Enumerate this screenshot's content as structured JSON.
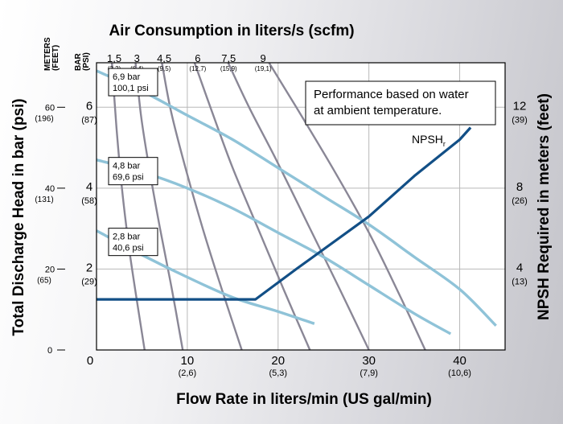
{
  "colors": {
    "grid": "#b8b8b8",
    "air_curve": "#8a8796",
    "pressure_curve": "#8fc3d8",
    "npsh_curve": "#124f86",
    "frame": "#000000",
    "plot_bg": "#ffffff"
  },
  "chart_data": {
    "type": "line",
    "title": "Air Consumption in liters/s (scfm)",
    "xlabel": "Flow Rate in liters/min (US gal/min)",
    "ylabel_left": "Total Discharge Head in bar (psi)",
    "ylabel_right": "NPSH Required in meters (feet)",
    "meters_feet_header": "METERS\n(FEET)",
    "bar_psi_header": "BAR\n(PSI)",
    "note": "Performance based on water at ambient temperature.",
    "npsh_label": "NPSH",
    "npsh_subscript": "r",
    "xlim": [
      0,
      45
    ],
    "ylim": [
      0,
      7.1
    ],
    "grid": true,
    "x_ticks": [
      {
        "x": 0,
        "label": "0",
        "sub": ""
      },
      {
        "x": 10,
        "label": "10",
        "sub": "(2,6)"
      },
      {
        "x": 20,
        "label": "20",
        "sub": "(5,3)"
      },
      {
        "x": 30,
        "label": "30",
        "sub": "(7,9)"
      },
      {
        "x": 40,
        "label": "40",
        "sub": "(10,6)"
      }
    ],
    "y_bar_ticks": [
      {
        "y": 2,
        "label": "2",
        "sub": "(29)"
      },
      {
        "y": 4,
        "label": "4",
        "sub": "(58)"
      },
      {
        "y": 6,
        "label": "6",
        "sub": "(87)"
      }
    ],
    "y_meters_ticks": [
      {
        "y": 0,
        "label": "0",
        "sub": ""
      },
      {
        "y": 2,
        "label": "20",
        "sub": "(65)"
      },
      {
        "y": 4,
        "label": "40",
        "sub": "(131)"
      },
      {
        "y": 6,
        "label": "60",
        "sub": "(196)"
      }
    ],
    "y_npsh_ticks": [
      {
        "y": 2,
        "label": "4",
        "sub": "(13)"
      },
      {
        "y": 4,
        "label": "8",
        "sub": "(26)"
      },
      {
        "y": 6,
        "label": "12",
        "sub": "(39)"
      }
    ],
    "air_labels": [
      {
        "label": "1,5",
        "sub": "(3,2)",
        "x": 0.8
      },
      {
        "label": "3",
        "sub": "(6,4)",
        "x": 3.3
      },
      {
        "label": "4,5",
        "sub": "(9,5)",
        "x": 6.3
      },
      {
        "label": "6",
        "sub": "(12,7)",
        "x": 10.0
      },
      {
        "label": "7,5",
        "sub": "(15,9)",
        "x": 13.4
      },
      {
        "label": "9",
        "sub": "(19,1)",
        "x": 17.2
      }
    ],
    "air_curves": [
      [
        [
          1.7,
          7.1
        ],
        [
          2.2,
          5.5
        ],
        [
          2.8,
          4.0
        ],
        [
          3.6,
          2.5
        ],
        [
          4.6,
          1.0
        ],
        [
          5.3,
          0.0
        ]
      ],
      [
        [
          4.3,
          7.1
        ],
        [
          4.9,
          5.8
        ],
        [
          5.8,
          4.5
        ],
        [
          7.0,
          3.0
        ],
        [
          8.3,
          1.5
        ],
        [
          9.5,
          0.0
        ]
      ],
      [
        [
          7.2,
          7.1
        ],
        [
          8.2,
          5.9
        ],
        [
          9.8,
          4.5
        ],
        [
          11.7,
          3.0
        ],
        [
          13.8,
          1.5
        ],
        [
          16.0,
          0.0
        ]
      ],
      [
        [
          10.8,
          7.1
        ],
        [
          12.7,
          5.9
        ],
        [
          15.0,
          4.5
        ],
        [
          17.8,
          3.0
        ],
        [
          20.6,
          1.5
        ],
        [
          23.5,
          0.0
        ]
      ],
      [
        [
          14.5,
          7.1
        ],
        [
          16.8,
          6.0
        ],
        [
          19.8,
          4.7
        ],
        [
          23.3,
          3.1
        ],
        [
          26.8,
          1.5
        ],
        [
          30.0,
          0.0
        ]
      ],
      [
        [
          19.0,
          7.1
        ],
        [
          22.0,
          6.0
        ],
        [
          26.0,
          4.5
        ],
        [
          30.0,
          2.9
        ],
        [
          33.5,
          1.3
        ],
        [
          36.2,
          0.0
        ]
      ]
    ],
    "series": [
      {
        "name": "6,9 bar",
        "label": "6,9 bar",
        "sub": "100,1 psi",
        "values": [
          [
            0,
            6.9
          ],
          [
            5,
            6.4
          ],
          [
            10,
            5.8
          ],
          [
            15,
            5.2
          ],
          [
            20,
            4.5
          ],
          [
            25,
            3.8
          ],
          [
            30,
            3.1
          ],
          [
            35,
            2.3
          ],
          [
            40,
            1.5
          ],
          [
            44,
            0.6
          ]
        ]
      },
      {
        "name": "4,8 bar",
        "label": "4,8 bar",
        "sub": "69,6 psi",
        "values": [
          [
            0,
            4.7
          ],
          [
            5,
            4.4
          ],
          [
            10,
            4.0
          ],
          [
            15,
            3.5
          ],
          [
            20,
            2.9
          ],
          [
            25,
            2.3
          ],
          [
            30,
            1.6
          ],
          [
            35,
            0.9
          ],
          [
            39,
            0.4
          ]
        ]
      },
      {
        "name": "2,8 bar",
        "label": "2,8 bar",
        "sub": "40,6 psi",
        "values": [
          [
            0,
            2.95
          ],
          [
            5,
            2.35
          ],
          [
            10,
            1.8
          ],
          [
            15,
            1.3
          ],
          [
            20,
            0.95
          ],
          [
            24,
            0.65
          ]
        ]
      },
      {
        "name": "NPSH",
        "values": [
          [
            0,
            1.25
          ],
          [
            17.5,
            1.25
          ],
          [
            22,
            2.0
          ],
          [
            30,
            3.3
          ],
          [
            35,
            4.3
          ],
          [
            40,
            5.2
          ],
          [
            41.2,
            5.5
          ]
        ]
      }
    ]
  }
}
